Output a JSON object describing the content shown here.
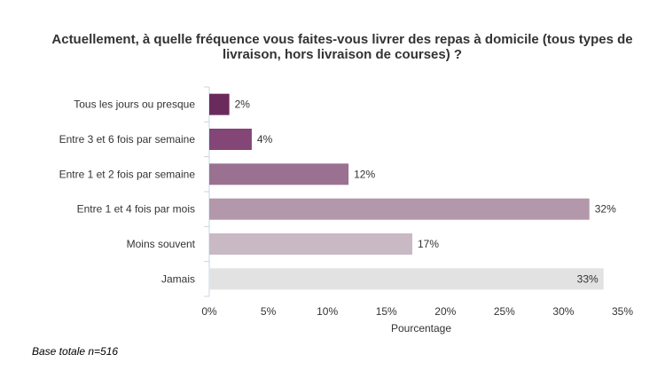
{
  "chart_data": {
    "type": "bar",
    "orientation": "horizontal",
    "title_lines": [
      "Actuellement, à quelle fréquence vous faites-vous livrer des repas à domicile (tous types de",
      "livraison, hors livraison de courses) ?"
    ],
    "categories": [
      "Tous les jours ou presque",
      "Entre 3 et 6 fois par semaine",
      "Entre 1 et 2 fois par semaine",
      "Entre 1 et 4 fois par mois",
      "Moins souvent",
      "Jamais"
    ],
    "values": [
      1.7,
      3.6,
      11.8,
      32.2,
      17.2,
      33.4
    ],
    "value_labels": [
      "2%",
      "4%",
      "12%",
      "32%",
      "17%",
      "33%"
    ],
    "label_inside": [
      false,
      false,
      false,
      false,
      false,
      true
    ],
    "colors": [
      "#6b2a5c",
      "#834677",
      "#9b7191",
      "#b397ab",
      "#c8b9c4",
      "#e2e2e2"
    ],
    "xlabel": "Pourcentage",
    "xlim": [
      0,
      35
    ],
    "xticks": [
      "0%",
      "5%",
      "10%",
      "15%",
      "20%",
      "25%",
      "30%",
      "35%"
    ],
    "grid": false,
    "legend": "none"
  },
  "footnote": "Base totale n=516"
}
